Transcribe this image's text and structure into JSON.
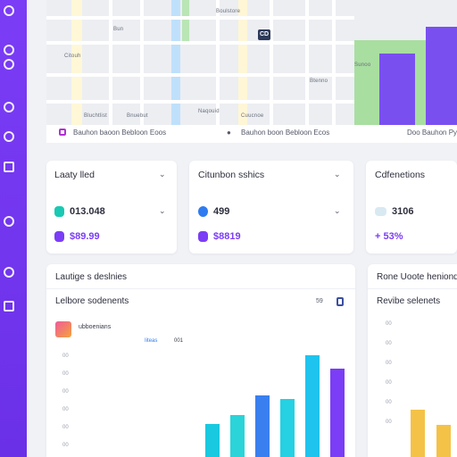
{
  "map": {
    "street_labels": [
      "Citouh",
      "Bun",
      "Boulstore",
      "Bnuebut",
      "Naqouid",
      "Cuucnoe",
      "Btenno",
      "Sunoo",
      "Bluchtlist"
    ],
    "footer_left": "Bauhon baoon Bebloon Eoos",
    "footer_center": "Bauhon boon Bebloon Ecos",
    "footer_right": "Doo Bauhon Py",
    "marker_label": "CD"
  },
  "cards": [
    {
      "title": "Laaty lled",
      "row1_value": "013.048",
      "row2_value": "$89.99",
      "row1_color": "#19c9b3",
      "row2_color": "#7b3df5"
    },
    {
      "title": "Citunbon sshics",
      "row1_value": "499",
      "row2_value": "$8819",
      "row1_color": "#2f7bf0",
      "row2_color": "#7b3df5"
    },
    {
      "title": "Cdfenetions",
      "row1_value": "3106",
      "row2_value": "+ 53%",
      "row1_color": "#19c9b3",
      "row2_color": "#7b3df5"
    }
  ],
  "panel_left": {
    "header": "Lautige s deslnies",
    "subheader": "Lelbore sodenents",
    "badge": "59",
    "legend_item": "ubboenians",
    "legend_a": "Iiteas",
    "legend_b": "001",
    "ytick_labels": [
      "00",
      "00",
      "00",
      "00",
      "00",
      "00",
      "00"
    ]
  },
  "panel_right": {
    "header": "Rone Uoote heniond",
    "subheader": "Revibe selenets",
    "ytick_labels": [
      "00",
      "00",
      "00",
      "00",
      "00",
      "00"
    ]
  },
  "chart_data": {
    "type": "bar",
    "colors": [
      "#19c9e0",
      "#2ad4d9",
      "#3a7ff0",
      "#25d1e3",
      "#1ec4ee",
      "#7b3df5"
    ],
    "values": [
      35,
      45,
      65,
      62,
      108,
      94
    ],
    "ylim": [
      0,
      110
    ]
  },
  "chart_data_right": {
    "type": "bar",
    "colors": [
      "#f4c247",
      "#f4c247"
    ],
    "values": [
      50,
      34
    ],
    "ylim": [
      0,
      110
    ]
  }
}
